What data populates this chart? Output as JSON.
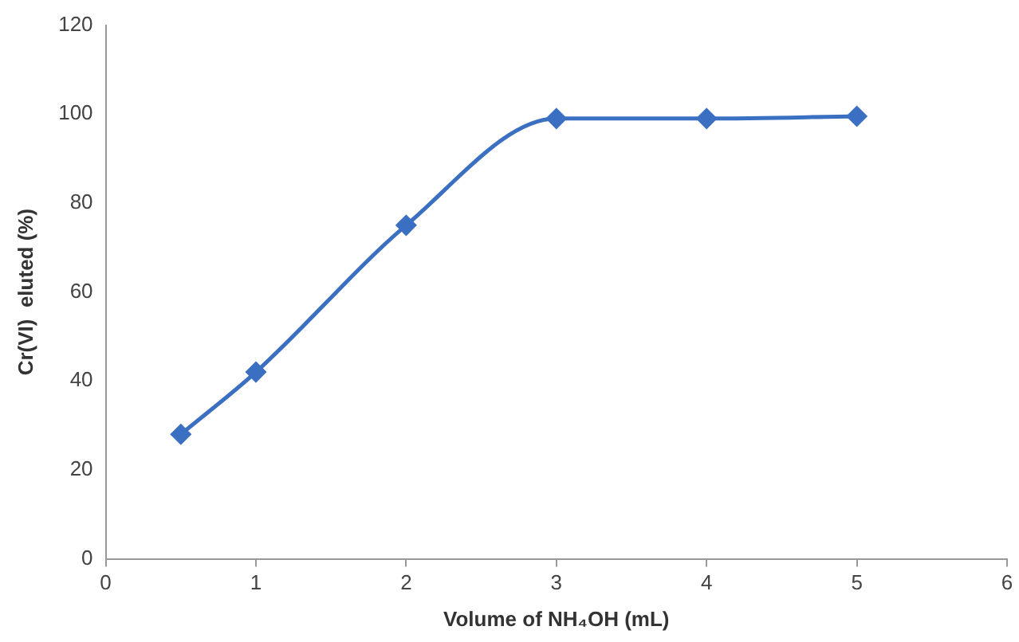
{
  "chart_data": {
    "type": "line",
    "xlabel": "Volume of NH₄OH (mL)",
    "ylabel": "Cr(VI)  eluted (%)",
    "x": [
      0.5,
      1,
      2,
      3,
      4,
      5
    ],
    "series": [
      {
        "color": "#3a6fc1",
        "values": [
          28,
          42,
          75,
          99,
          99,
          99.5
        ]
      }
    ],
    "xlim": [
      0,
      6
    ],
    "xticks": [
      0,
      1,
      2,
      3,
      4,
      5,
      6
    ],
    "ylim": [
      0,
      120
    ],
    "yticks": [
      0,
      20,
      40,
      60,
      80,
      100,
      120
    ],
    "grid": false,
    "legend": false,
    "marker": "diamond",
    "line_style": "solid"
  }
}
